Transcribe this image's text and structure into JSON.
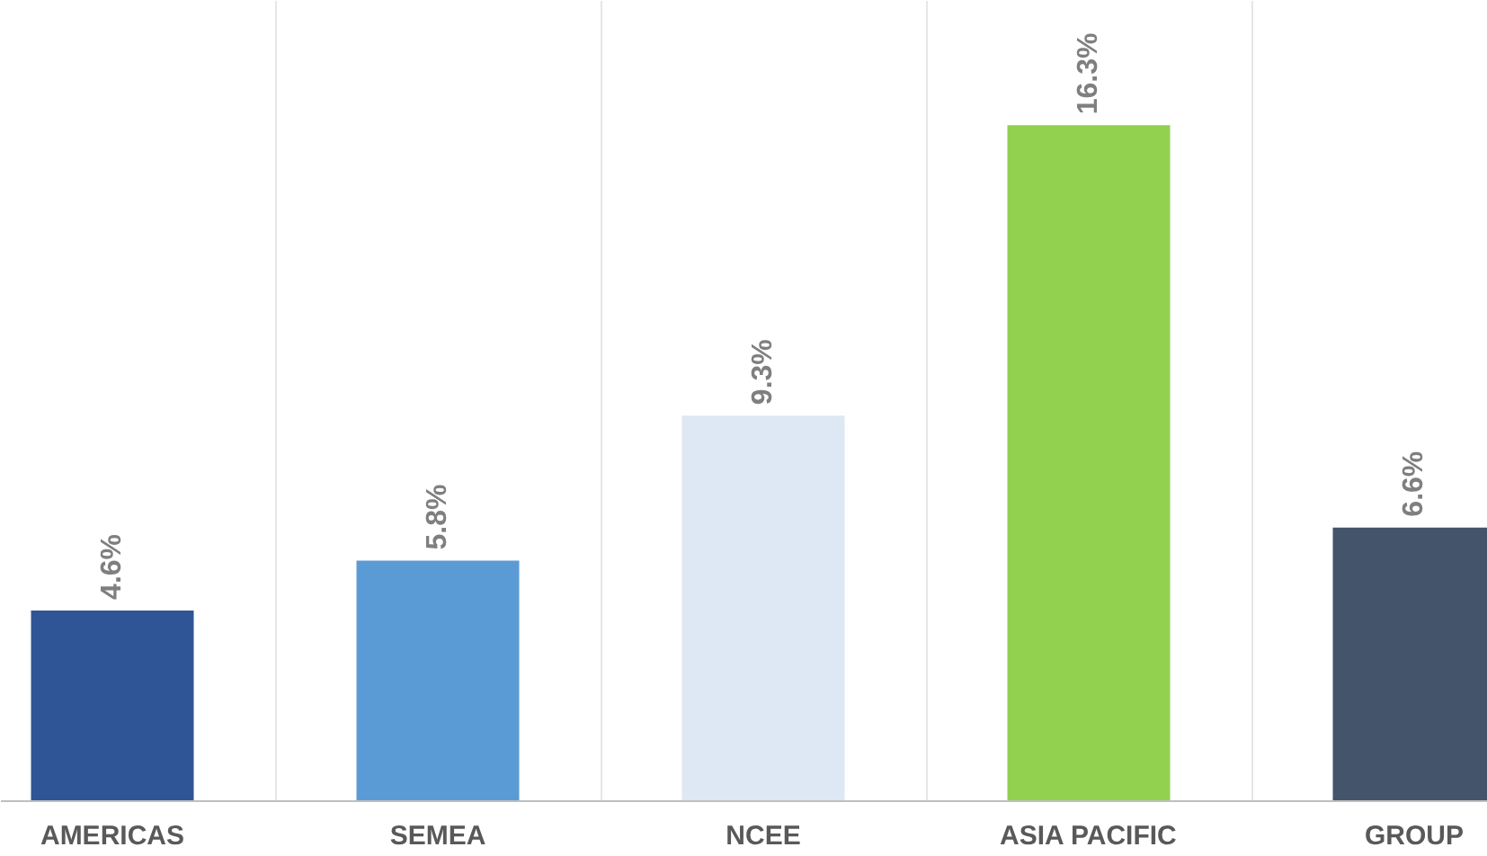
{
  "chart_data": {
    "type": "bar",
    "categories": [
      "AMERICAS",
      "SEMEA",
      "NCEE",
      "ASIA PACIFIC",
      "GROUP"
    ],
    "values": [
      4.6,
      5.8,
      9.3,
      16.3,
      6.6
    ],
    "value_labels": [
      "4.6%",
      "5.8%",
      "9.3%",
      "16.3%",
      "6.6%"
    ],
    "colors": [
      "#2f5597",
      "#5b9bd5",
      "#dde8f4",
      "#92d050",
      "#44546a"
    ],
    "ylim": [
      0,
      19.3
    ],
    "grid": "x"
  }
}
